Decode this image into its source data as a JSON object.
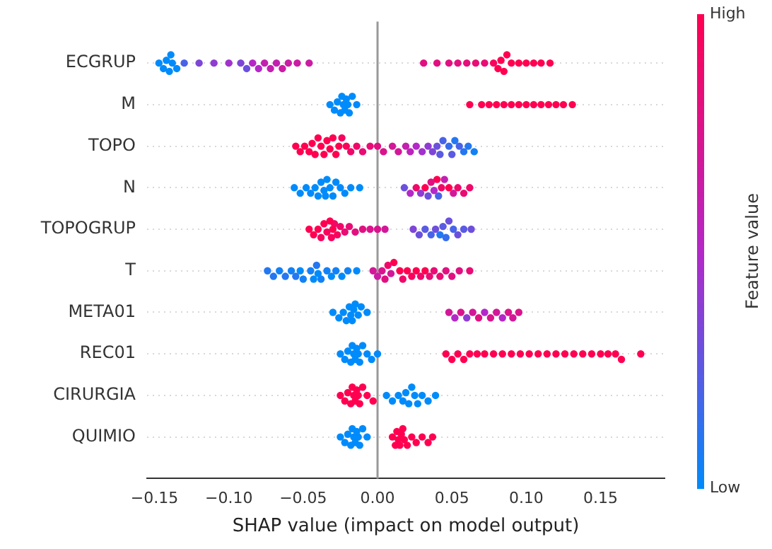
{
  "chart_data": {
    "type": "scatter",
    "orientation": "horizontal",
    "xlabel": "SHAP value (impact on model output)",
    "clabel": "Feature value",
    "categories": [
      "ECGRUP",
      "M",
      "TOPO",
      "N",
      "TOPOGRUP",
      "T",
      "META01",
      "REC01",
      "CIRURGIA",
      "QUIMIO"
    ],
    "xlim": [
      -0.155,
      0.193
    ],
    "xticks": [
      {
        "value": -0.15,
        "label": "−0.15"
      },
      {
        "value": -0.1,
        "label": "−0.10"
      },
      {
        "value": -0.05,
        "label": "−0.05"
      },
      {
        "value": 0,
        "label": "0.00"
      },
      {
        "value": 0.05,
        "label": "0.05"
      },
      {
        "value": 0.1,
        "label": "0.10"
      },
      {
        "value": 0.15,
        "label": "0.15"
      }
    ],
    "clim": [
      0,
      1
    ],
    "cticks": [
      {
        "value": 0,
        "label": "Low"
      },
      {
        "value": 1,
        "label": "High"
      }
    ],
    "grid": "y",
    "legend": false,
    "marker": "circle",
    "ref_lines": [
      {
        "axis": "x",
        "value": 0,
        "color": "#999999"
      }
    ],
    "series": [
      {
        "values": [
          -0.147,
          -0.032,
          -0.055,
          -0.056,
          -0.046,
          -0.074,
          -0.03,
          -0.025,
          -0.025,
          -0.025
        ],
        "colors": [
          "#008bfb",
          "#008bfb",
          "#ff0051",
          "#008bfb",
          "#ff0051",
          "#2477f1",
          "#008bfb",
          "#008bfb",
          "#ff0051",
          "#008bfb"
        ]
      },
      {
        "values": [
          -0.144,
          -0.029,
          -0.052,
          -0.052,
          -0.043,
          -0.07,
          -0.026,
          -0.022,
          -0.022,
          -0.022
        ],
        "colors": [
          "#008bfb",
          "#008bfb",
          "#ff0051",
          "#008bfb",
          "#ff0051",
          "#2477f1",
          "#008bfb",
          "#008bfb",
          "#ff0051",
          "#008bfb"
        ]
      },
      {
        "values": [
          -0.142,
          -0.027,
          -0.049,
          -0.048,
          -0.04,
          -0.066,
          -0.023,
          -0.02,
          -0.02,
          -0.02
        ],
        "colors": [
          "#008bfb",
          "#008bfb",
          "#ff0051",
          "#008bfb",
          "#ff0051",
          "#1281f6",
          "#008bfb",
          "#008bfb",
          "#ff0051",
          "#008bfb"
        ]
      },
      {
        "values": [
          -0.14,
          -0.025,
          -0.046,
          -0.045,
          -0.038,
          -0.062,
          -0.021,
          -0.018,
          -0.018,
          -0.018
        ],
        "colors": [
          "#008bfb",
          "#008bfb",
          "#ff0051",
          "#008bfb",
          "#f8045d",
          "#2477f1",
          "#008bfb",
          "#008bfb",
          "#ff0051",
          "#008bfb"
        ]
      },
      {
        "values": [
          -0.139,
          -0.024,
          -0.044,
          -0.042,
          -0.036,
          -0.058,
          -0.019,
          -0.017,
          -0.017,
          -0.017
        ],
        "colors": [
          "#008bfb",
          "#008bfb",
          "#ff0051",
          "#008bfb",
          "#ff0051",
          "#1281f6",
          "#008bfb",
          "#008bfb",
          "#ff0051",
          "#008bfb"
        ]
      },
      {
        "values": [
          -0.138,
          -0.023,
          -0.042,
          -0.04,
          -0.034,
          -0.055,
          -0.018,
          -0.016,
          -0.016,
          -0.016
        ],
        "colors": [
          "#008bfb",
          "#008bfb",
          "#ff0051",
          "#008bfb",
          "#f8045d",
          "#2477f1",
          "#008bfb",
          "#008bfb",
          "#ff0051",
          "#008bfb"
        ]
      },
      {
        "values": [
          -0.135,
          -0.022,
          -0.04,
          -0.038,
          -0.032,
          -0.052,
          -0.017,
          -0.015,
          -0.015,
          -0.015
        ],
        "colors": [
          "#008bfb",
          "#008bfb",
          "#ff0051",
          "#008bfb",
          "#ff0051",
          "#008bfb",
          "#008bfb",
          "#008bfb",
          "#ff0051",
          "#008bfb"
        ]
      },
      {
        "values": [
          -0.13,
          null,
          -0.038,
          -0.036,
          -0.031,
          -0.05,
          null,
          null,
          null,
          null
        ],
        "colors": [
          "#4863e7",
          null,
          "#ff0051",
          "#008bfb",
          "#f8045d",
          "#1281f6",
          null,
          null,
          null,
          null
        ]
      },
      {
        "values": [
          -0.12,
          -0.021,
          -0.036,
          -0.035,
          -0.03,
          -0.045,
          -0.016,
          -0.014,
          -0.014,
          -0.014
        ],
        "colors": [
          "#7e46d7",
          "#008bfb",
          "#ff0051",
          "#008bfb",
          "#ff0051",
          "#1281f6",
          "#008bfb",
          "#008bfb",
          "#ff0051",
          "#008bfb"
        ]
      },
      {
        "values": [
          -0.11,
          -0.02,
          -0.034,
          -0.034,
          -0.029,
          -0.043,
          -0.015,
          -0.013,
          -0.013,
          -0.013
        ],
        "colors": [
          "#903cd2",
          "#008bfb",
          "#ff0051",
          "#008bfb",
          "#f00869",
          "#008bfb",
          "#008bfb",
          "#008bfb",
          "#ff0051",
          "#008bfb"
        ]
      },
      {
        "values": [
          -0.1,
          -0.019,
          -0.032,
          -0.032,
          -0.027,
          -0.041,
          -0.013,
          -0.012,
          -0.012,
          -0.012
        ],
        "colors": [
          "#a232cd",
          "#008bfb",
          "#ff0051",
          "#008bfb",
          "#f8045d",
          "#2477f1",
          "#008bfb",
          "#008bfb",
          "#ff0051",
          "#008bfb"
        ]
      },
      {
        "values": [
          -0.092,
          -0.017,
          -0.03,
          -0.03,
          -0.025,
          -0.04,
          -0.011,
          -0.01,
          -0.01,
          -0.01
        ],
        "colors": [
          "#7e46d7",
          "#008bfb",
          "#ff0051",
          "#008bfb",
          "#f00869",
          "#008bfb",
          "#008bfb",
          "#008bfb",
          "#ff0051",
          "#008bfb"
        ]
      },
      {
        "values": [
          -0.088,
          -0.014,
          -0.028,
          -0.028,
          -0.022,
          -0.038,
          -0.007,
          -0.007,
          -0.007,
          -0.007
        ],
        "colors": [
          "#6c50dc",
          "#008bfb",
          "#ff0051",
          "#008bfb",
          "#e90c75",
          "#1281f6",
          "#008bfb",
          "#008bfb",
          "#ff0051",
          "#008bfb"
        ]
      },
      {
        "values": [
          -0.084,
          0.062,
          -0.026,
          -0.025,
          -0.019,
          -0.034,
          0.048,
          -0.004,
          -0.003,
          0.01
        ],
        "colors": [
          "#b428c8",
          "#ff0051",
          "#ff0051",
          "#008bfb",
          "#e90c75",
          "#1281f6",
          "#d21898",
          "#008bfb",
          "#ff0051",
          "#ff0051"
        ]
      },
      {
        "values": [
          -0.08,
          0.07,
          -0.024,
          -0.022,
          -0.015,
          -0.031,
          0.052,
          0,
          0.006,
          0.012
        ],
        "colors": [
          "#b428c8",
          "#ff0051",
          "#f8045d",
          "#008bfb",
          "#e11081",
          "#008bfb",
          "#b428c8",
          "#008bfb",
          "#008bfb",
          "#ff0051"
        ]
      },
      {
        "values": [
          -0.076,
          0.075,
          -0.021,
          -0.018,
          -0.01,
          -0.028,
          0.056,
          0.046,
          0.01,
          0.013
        ],
        "colors": [
          "#c320b0",
          "#ff0051",
          "#f8045d",
          "#008bfb",
          "#e11081",
          "#1281f6",
          "#da148d",
          "#ff0051",
          "#008bfb",
          "#ff0051"
        ]
      },
      {
        "values": [
          -0.072,
          0.08,
          -0.018,
          -0.012,
          -0.005,
          -0.024,
          0.06,
          0.05,
          0.014,
          0.014
        ],
        "colors": [
          "#c320b0",
          "#ff0051",
          "#f00869",
          "#008bfb",
          "#da148d",
          "#008bfb",
          "#903cd2",
          "#ff0051",
          "#008bfb",
          "#ff0051"
        ]
      },
      {
        "values": [
          -0.068,
          0.085,
          -0.014,
          0.018,
          0,
          -0.02,
          0.064,
          0.054,
          0.017,
          0.015
        ],
        "colors": [
          "#c320b0",
          "#ff0051",
          "#f00869",
          "#6c50dc",
          "#da148d",
          "#1281f6",
          "#d21898",
          "#ff0051",
          "#008bfb",
          "#ff0051"
        ]
      },
      {
        "values": [
          -0.064,
          0.09,
          -0.01,
          0.022,
          0.005,
          -0.014,
          0.068,
          0.058,
          0.019,
          0.016
        ],
        "colors": [
          "#cb1ca4",
          "#ff0051",
          "#e90c75",
          "#b428c8",
          "#d21898",
          "#008bfb",
          "#e11081",
          "#ff0051",
          "#008bfb",
          "#ff0051"
        ]
      },
      {
        "values": [
          -0.06,
          0.095,
          -0.005,
          0.026,
          0.024,
          -0.003,
          0.072,
          0.062,
          0.021,
          0.017
        ],
        "colors": [
          "#cb1ca4",
          "#ff0051",
          "#e90c75",
          "#f00869",
          "#7e46d7",
          "#d21898",
          "#b428c8",
          "#ff0051",
          "#008bfb",
          "#ff0051"
        ]
      },
      {
        "values": [
          -0.054,
          0.1,
          0,
          0.029,
          0.028,
          0,
          0.076,
          0.067,
          0.023,
          0.018
        ],
        "colors": [
          "#cb1ca4",
          "#ff0051",
          "#e11081",
          "#903cd2",
          "#6c50dc",
          "#cb1ca4",
          "#da148d",
          "#ff0051",
          "#008bfb",
          "#ff0051"
        ]
      },
      {
        "values": [
          -0.046,
          0.105,
          0.004,
          0.032,
          0.032,
          0.003,
          0.08,
          0.072,
          0.025,
          0.02
        ],
        "colors": [
          "#cb1ca4",
          "#ff0051",
          "#da148d",
          "#ff0051",
          "#5a5ae2",
          "#da148d",
          "#d21898",
          "#ff0051",
          "#008bfb",
          "#ff0051"
        ]
      },
      {
        "values": [
          0.031,
          0.11,
          0.01,
          0.034,
          0.036,
          0.005,
          0.084,
          0.078,
          0.027,
          0.023
        ],
        "colors": [
          "#e11081",
          "#ff0051",
          "#d21898",
          "#6c50dc",
          "#4863e7",
          "#e11081",
          "#b428c8",
          "#ff0051",
          "#008bfb",
          "#ff0051"
        ]
      },
      {
        "values": [
          0.04,
          0.115,
          0.014,
          0.036,
          0.039,
          0.007,
          0.088,
          0.084,
          0.03,
          0.026
        ],
        "colors": [
          "#e11081",
          "#ff0051",
          "#d21898",
          "#e11081",
          "#6c50dc",
          "#f00869",
          "#da148d",
          "#ff0051",
          "#008bfb",
          "#ff0051"
        ]
      },
      {
        "values": [
          0.048,
          0.12,
          0.019,
          0.038,
          0.042,
          0.009,
          0.091,
          0.09,
          0.034,
          0.03
        ],
        "colors": [
          "#e11081",
          "#ff0051",
          "#c320b0",
          "#b428c8",
          "#2477f1",
          "#d21898",
          "#d21898",
          "#ff0051",
          "#008bfb",
          "#ff0051"
        ]
      },
      {
        "values": [
          0.054,
          0.125,
          0.022,
          0.04,
          0.044,
          0.011,
          0.095,
          0.096,
          0.039,
          0.034
        ],
        "colors": [
          "#e11081",
          "#ff0051",
          "#bc24bc",
          "#ff0051",
          "#5a5ae2",
          "#ff0051",
          "#da148d",
          "#ff0051",
          "#008bfb",
          "#ff0051"
        ]
      },
      {
        "values": [
          0.06,
          0.131,
          0.026,
          0.041,
          0.046,
          0.015,
          null,
          0.102,
          null,
          0.037
        ],
        "colors": [
          "#e40e7c",
          "#ff0051",
          "#b428c8",
          "#4863e7",
          "#366dec",
          "#ff0051",
          null,
          "#ff0051",
          null,
          "#ff0051"
        ]
      },
      {
        "values": [
          0.066,
          null,
          0.03,
          0.043,
          0.048,
          0.017,
          null,
          0.108,
          null,
          null
        ],
        "colors": [
          "#e90c75",
          null,
          "#a232cd",
          "#f00869",
          "#6c50dc",
          "#f00869",
          null,
          "#ff0051",
          null,
          null
        ]
      },
      {
        "values": [
          0.072,
          null,
          0.034,
          0.045,
          0.051,
          0.02,
          null,
          0.114,
          null,
          null
        ],
        "colors": [
          "#e90c75",
          null,
          "#903cd2",
          "#c320b0",
          "#4863e7",
          "#ff0051",
          null,
          "#ff0051",
          null,
          null
        ]
      },
      {
        "values": [
          0.078,
          null,
          0.037,
          0.048,
          0.054,
          0.023,
          null,
          0.12,
          null,
          null
        ],
        "colors": [
          "#f8045d",
          null,
          "#7e46d7",
          "#ff0051",
          "#6c50dc",
          "#f8045d",
          null,
          "#ff0051",
          null,
          null
        ]
      },
      {
        "values": [
          0.081,
          null,
          0.04,
          0.051,
          0.058,
          0.026,
          null,
          0.126,
          null,
          null
        ],
        "colors": [
          "#ff0051",
          null,
          "#6c50dc",
          "#d21898",
          "#5a5ae2",
          "#ff0051",
          null,
          "#ff0051",
          null,
          null
        ]
      },
      {
        "values": [
          0.083,
          null,
          0.042,
          0.054,
          0.063,
          0.029,
          null,
          0.132,
          null,
          null
        ],
        "colors": [
          "#ff0051",
          null,
          "#5a5ae2",
          "#f00869",
          "#6c50dc",
          "#f00869",
          null,
          "#ff0051",
          null,
          null
        ]
      },
      {
        "values": [
          0.085,
          null,
          0.044,
          0.058,
          null,
          0.032,
          null,
          0.138,
          null,
          null
        ],
        "colors": [
          "#ff0051",
          null,
          "#4863e7",
          "#e90c75",
          null,
          "#ff0051",
          null,
          "#ff0051",
          null,
          null
        ]
      },
      {
        "values": [
          0.087,
          null,
          0.048,
          0.062,
          null,
          0.035,
          null,
          0.144,
          null,
          null
        ],
        "colors": [
          "#ff0051",
          null,
          "#366dec",
          "#f00869",
          null,
          "#e90c75",
          null,
          "#ff0051",
          null,
          null
        ]
      },
      {
        "values": [
          0.09,
          null,
          0.05,
          null,
          null,
          0.038,
          null,
          0.15,
          null,
          null
        ],
        "colors": [
          "#ff0051",
          null,
          "#5a5ae2",
          null,
          null,
          "#e90c75",
          null,
          "#ff0051",
          null,
          null
        ]
      },
      {
        "values": [
          0.095,
          null,
          0.052,
          null,
          null,
          0.042,
          null,
          0.155,
          null,
          null
        ],
        "colors": [
          "#ff0051",
          null,
          "#2477f1",
          null,
          null,
          "#e90c75",
          null,
          "#ff0051",
          null,
          null
        ]
      },
      {
        "values": [
          0.1,
          null,
          0.055,
          null,
          null,
          0.046,
          null,
          0.16,
          null,
          null
        ],
        "colors": [
          "#ff0051",
          null,
          "#4863e7",
          null,
          null,
          "#e11081",
          null,
          "#ff0051",
          null,
          null
        ]
      },
      {
        "values": [
          0.105,
          null,
          0.058,
          null,
          null,
          0.05,
          null,
          0.164,
          null,
          null
        ],
        "colors": [
          "#ff0051",
          null,
          "#2477f1",
          null,
          null,
          "#e11081",
          null,
          "#ff0051",
          null,
          null
        ]
      },
      {
        "values": [
          0.11,
          null,
          0.061,
          null,
          null,
          0.055,
          null,
          0.177,
          null,
          null
        ],
        "colors": [
          "#ff0051",
          null,
          "#2477f1",
          null,
          null,
          "#e11081",
          null,
          "#ff0051",
          null,
          null
        ]
      },
      {
        "values": [
          0.116,
          null,
          0.065,
          null,
          null,
          0.062,
          null,
          null,
          null,
          null
        ],
        "colors": [
          "#ff0051",
          null,
          "#1281f6",
          null,
          null,
          "#e90c75",
          null,
          null,
          null,
          null
        ]
      }
    ]
  }
}
